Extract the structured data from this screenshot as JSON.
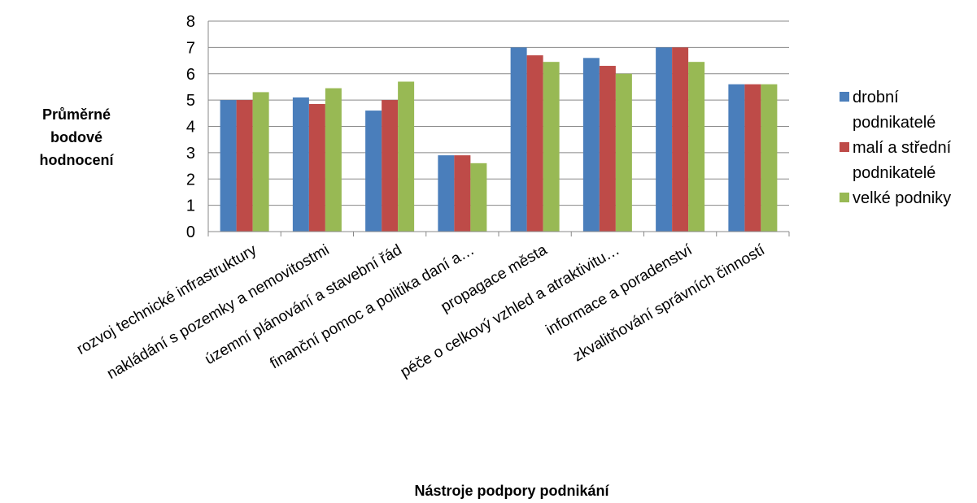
{
  "chart_data": {
    "type": "bar",
    "title": "",
    "ylabel_lines": [
      "Průměrné",
      "bodové",
      "hodnocení"
    ],
    "xlabel": "Nástroje podpory podnikání",
    "ylim": [
      0,
      8
    ],
    "yticks": [
      0,
      1,
      2,
      3,
      4,
      5,
      6,
      7,
      8
    ],
    "grid": true,
    "legend_position": "right",
    "categories": [
      "rozvoj technické infrastruktury",
      "nakládání s pozemky a nemovitostmi",
      "územní plánování a stavební řád",
      "finanční pomoc a politika daní a…",
      "propagace města",
      "péče o celkový vzhled a atraktivitu…",
      "informace a poradenství",
      "zkvalitňování správních činností"
    ],
    "series": [
      {
        "name": "drobní podnikatelé",
        "legend_lines": [
          "drobní",
          "podnikatelé"
        ],
        "color": "#4a7ebb",
        "values": [
          5.0,
          5.1,
          4.6,
          2.9,
          7.0,
          6.6,
          7.0,
          5.6
        ]
      },
      {
        "name": "malí a střední podnikatelé",
        "legend_lines": [
          "malí a střední",
          "podnikatelé"
        ],
        "color": "#be4b48",
        "values": [
          5.0,
          4.85,
          5.0,
          2.9,
          6.7,
          6.3,
          7.0,
          5.6
        ]
      },
      {
        "name": "velké podniky",
        "legend_lines": [
          "velké podniky"
        ],
        "color": "#98b954",
        "values": [
          5.3,
          5.45,
          5.7,
          2.6,
          6.45,
          6.0,
          6.45,
          5.6
        ]
      }
    ]
  }
}
